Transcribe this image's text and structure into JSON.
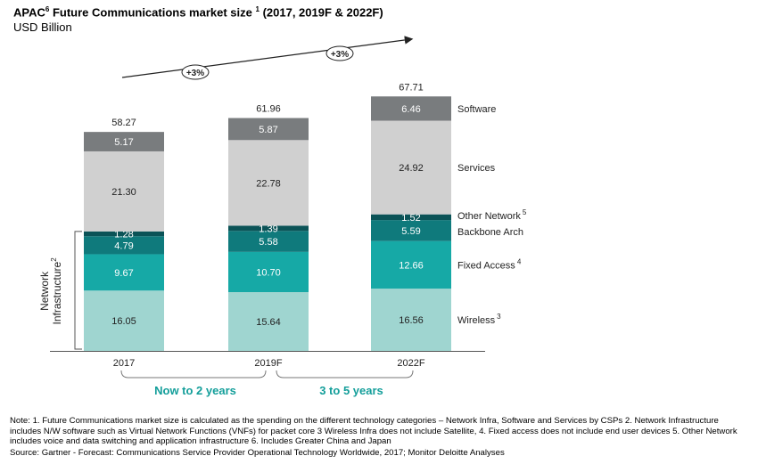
{
  "title": "APAC",
  "title_sup": "6",
  "title_rest": " Future Communications market size ",
  "title_sup2": "1",
  "title_tail": " (2017, 2019F & 2022F)",
  "subtitle": "USD Billion",
  "colors": {
    "wireless": "#9fd5d0",
    "fixed_access": "#16a9a6",
    "backbone": "#0f7a7c",
    "other_network": "#0b5357",
    "services": "#d0d0d0",
    "software": "#797c7e",
    "accent_text": "#139e9a"
  },
  "chart_data": {
    "type": "bar",
    "stacked": true,
    "categories": [
      "2017",
      "2019F",
      "2022F"
    ],
    "series": [
      {
        "key": "wireless",
        "name": "Wireless",
        "sup": "3",
        "values": [
          16.05,
          15.64,
          16.56
        ]
      },
      {
        "key": "fixed_access",
        "name": "Fixed Access",
        "sup": "4",
        "values": [
          9.67,
          10.7,
          12.66
        ]
      },
      {
        "key": "backbone",
        "name": "Backbone Arch",
        "sup": "",
        "values": [
          4.79,
          5.58,
          5.59
        ]
      },
      {
        "key": "other_network",
        "name": "Other Network",
        "sup": "5",
        "values": [
          1.28,
          1.39,
          1.52
        ]
      },
      {
        "key": "services",
        "name": "Services",
        "sup": "",
        "values": [
          21.3,
          22.78,
          24.92
        ]
      },
      {
        "key": "software",
        "name": "Software",
        "sup": "",
        "values": [
          5.17,
          5.87,
          6.46
        ]
      }
    ],
    "totals": [
      "58.27",
      "61.96",
      "67.71"
    ],
    "value_labels": [
      [
        "16.05",
        "15.64",
        "16.56"
      ],
      [
        "9.67",
        "10.70",
        "12.66"
      ],
      [
        "4.79",
        "5.58",
        "5.59"
      ],
      [
        "1.28",
        "1.39",
        "1.52"
      ],
      [
        "21.30",
        "22.78",
        "24.92"
      ],
      [
        "5.17",
        "5.87",
        "6.46"
      ]
    ],
    "growth_labels": [
      "+3%",
      "+3%"
    ],
    "periods": [
      "Now to 2 years",
      "3 to 5 years"
    ],
    "network_label_line1": "Network",
    "network_label_line2": "Infrastructure",
    "network_label_sup": "2",
    "legend_placement": "right",
    "grid": false
  },
  "note": "Note:  1. Future Communications market size is calculated as the spending on the different technology categories – Network Infra, Software and Services by CSPs 2. Network Infrastructure includes N/W software such as Virtual Network Functions (VNFs) for packet core  3 Wireless Infra does not include Satellite, 4. Fixed access does not include end user devices 5. Other Network includes voice and data switching and application infrastructure 6. Includes Greater China and Japan",
  "source": "Source: Gartner - Forecast: Communications Service Provider Operational Technology Worldwide, 2017; Monitor Deloitte Analyses"
}
